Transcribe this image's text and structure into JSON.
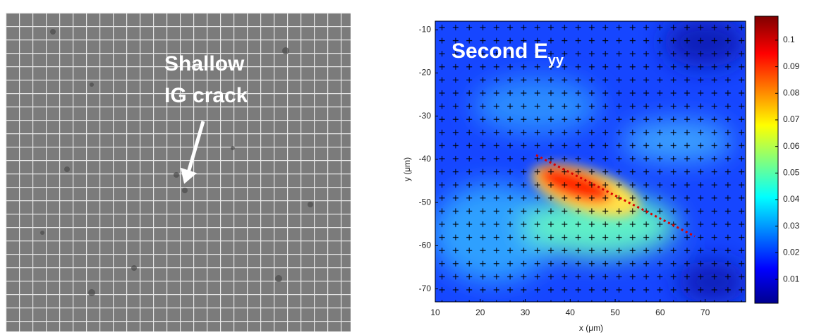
{
  "left_panel": {
    "annotation": [
      "Shallow",
      "IG crack"
    ]
  },
  "chart_data": {
    "type": "heatmap",
    "title": "Second E",
    "title_subscript": "yy",
    "x_label": "x (μm)",
    "y_label": "y (μm)",
    "xlim": [
      10,
      79
    ],
    "xticks": [
      10,
      20,
      30,
      40,
      50,
      60,
      70
    ],
    "ylim": [
      -73,
      -8
    ],
    "yticks": [
      -10,
      -20,
      -30,
      -40,
      -50,
      -60,
      -70
    ],
    "colorbar": {
      "lim": [
        0.001,
        0.109
      ],
      "ticks": [
        0.01,
        0.02,
        0.03,
        0.04,
        0.05,
        0.06,
        0.07,
        0.08,
        0.09,
        0.1
      ],
      "colormap": "jet"
    }
  }
}
